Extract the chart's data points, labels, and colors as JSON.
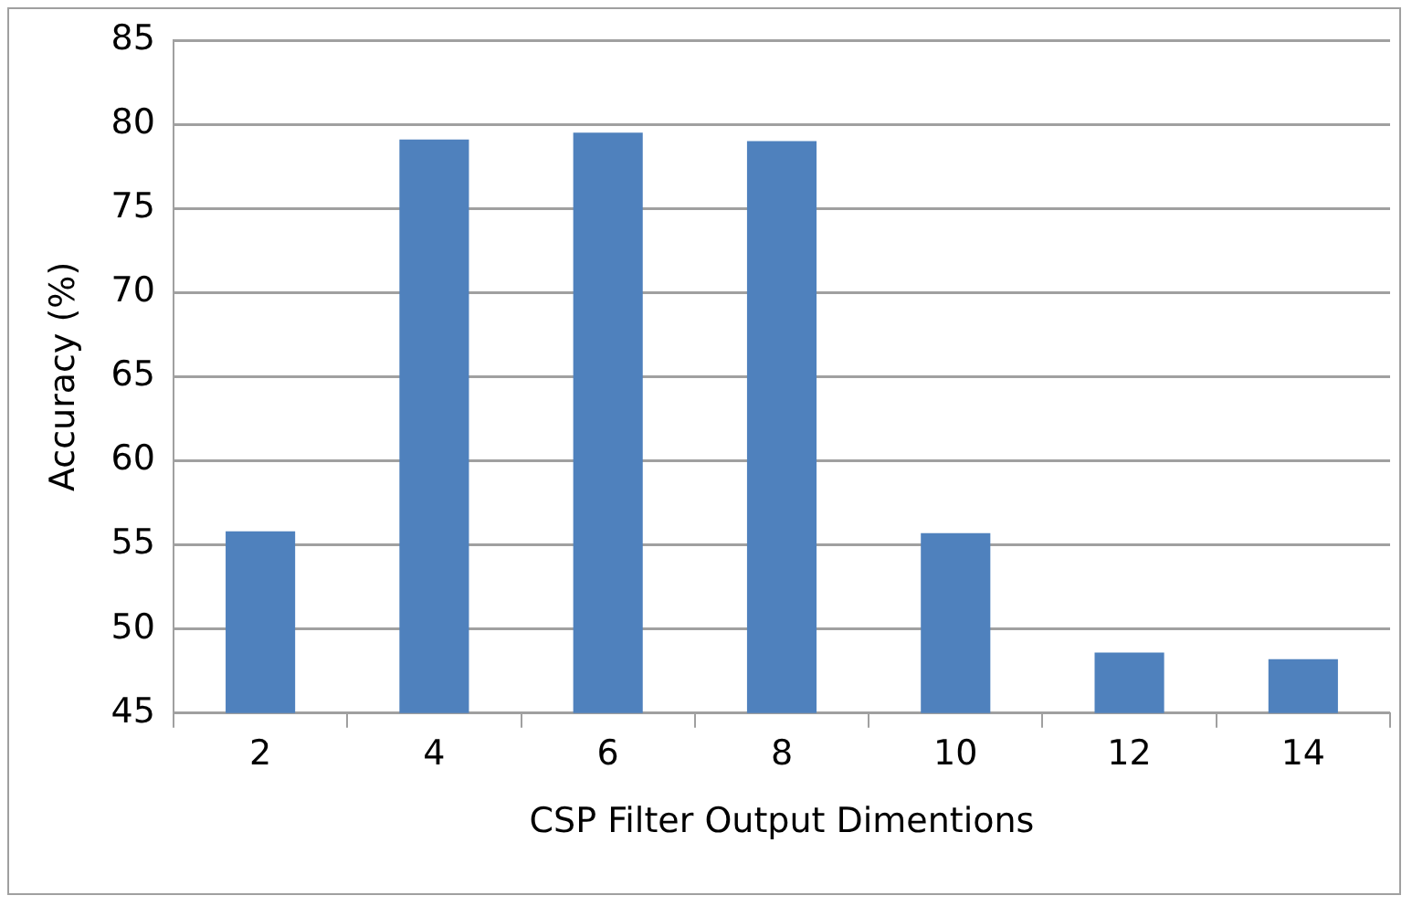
{
  "chart_data": {
    "type": "bar",
    "xlabel": "CSP Filter Output Dimentions",
    "ylabel": "Accuracy (%)",
    "categories": [
      "2",
      "4",
      "6",
      "8",
      "10",
      "12",
      "14"
    ],
    "values": [
      55.8,
      79.1,
      79.5,
      79.0,
      55.7,
      48.6,
      48.2
    ],
    "color": "#4f81bd",
    "ylim": [
      45,
      85
    ],
    "yticks": [
      45,
      50,
      55,
      60,
      65,
      70,
      75,
      80,
      85
    ],
    "grid": "y",
    "legend": false
  }
}
